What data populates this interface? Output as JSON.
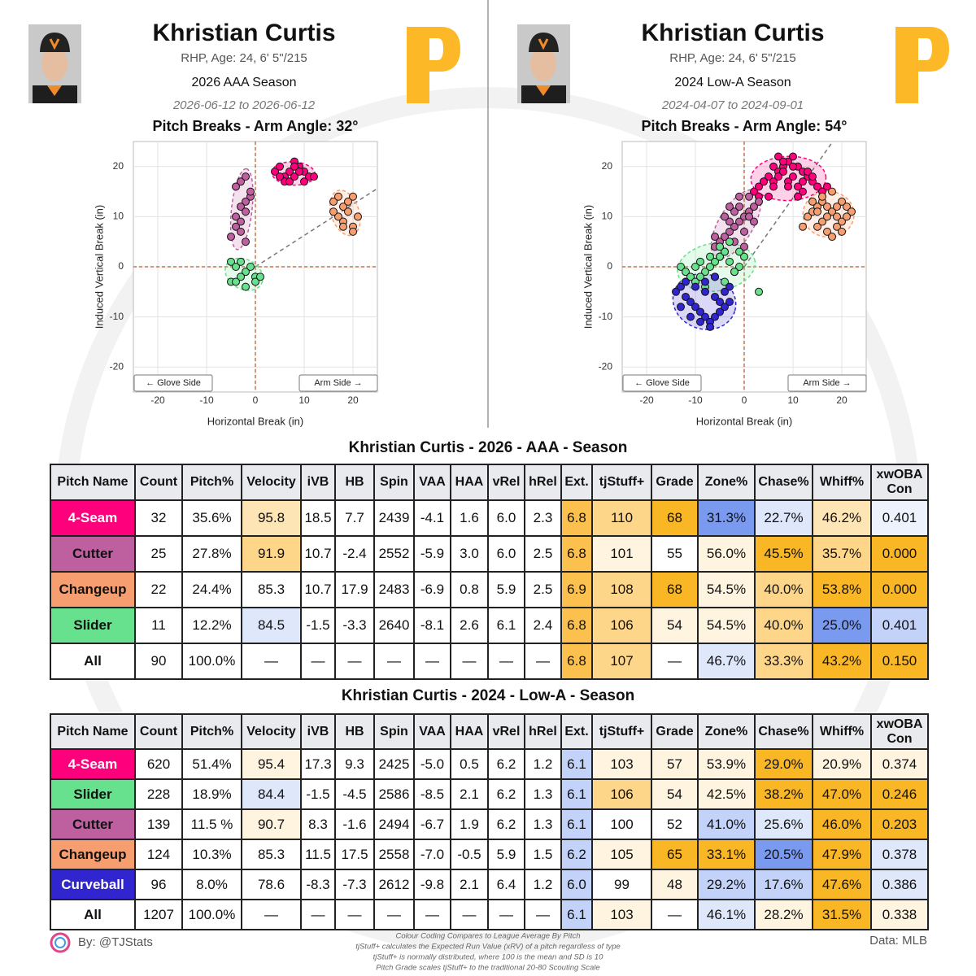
{
  "panels": [
    {
      "name": "Khristian Curtis",
      "bio": "RHP, Age: 24, 6' 5\"/215",
      "season": "2026 AAA Season",
      "dates": "2026-06-12 to 2026-06-12"
    },
    {
      "name": "Khristian Curtis",
      "bio": "RHP, Age: 24, 6' 5\"/215",
      "season": "2024 Low-A Season",
      "dates": "2024-04-07 to 2024-09-01"
    }
  ],
  "chart_data": [
    {
      "type": "scatter",
      "title": "Pitch Breaks - Arm Angle: 32°",
      "arm_angle": 32,
      "x_label": "Horizontal Break (in)",
      "y_label": "Induced Vertical Break (in)",
      "annotations": [
        "← Glove Side",
        "Arm Side →"
      ],
      "xlim": [
        -25,
        25
      ],
      "ylim": [
        -25,
        25
      ],
      "xticks": [
        -20,
        -10,
        0,
        10,
        20
      ],
      "yticks": [
        -20,
        -10,
        0,
        10,
        20
      ],
      "grid": true,
      "series": [
        {
          "color": "#ff007d",
          "x": [
            4,
            5,
            6,
            7,
            8,
            9,
            10,
            11,
            6,
            7,
            8,
            9,
            10,
            5,
            8,
            12
          ],
          "y": [
            19,
            20,
            18,
            19,
            21,
            20,
            19,
            18,
            17,
            17,
            18,
            19,
            17,
            18,
            20,
            18
          ]
        },
        {
          "color": "#be5fa0",
          "x": [
            -3,
            -2,
            -1,
            -2,
            -3,
            -4,
            -3,
            -2,
            -4,
            -5,
            -3,
            -1,
            -2,
            -4
          ],
          "y": [
            17,
            18,
            14,
            13,
            12,
            10,
            9,
            11,
            8,
            6,
            7,
            15,
            5,
            16
          ]
        },
        {
          "color": "#f79e70",
          "x": [
            16,
            17,
            18,
            19,
            20,
            21,
            17,
            18,
            19,
            20,
            16,
            18,
            20
          ],
          "y": [
            13,
            14,
            12,
            13,
            14,
            10,
            10,
            9,
            11,
            8,
            11,
            8,
            7
          ]
        },
        {
          "color": "#67e18d",
          "x": [
            -5,
            -4,
            -3,
            -2,
            -1,
            0,
            -5,
            -3,
            -2,
            -4,
            0,
            1
          ],
          "y": [
            1,
            0,
            1,
            -1,
            0,
            -2,
            -3,
            -2,
            -4,
            -3,
            -3,
            -2
          ]
        }
      ]
    },
    {
      "type": "scatter",
      "title": "Pitch Breaks - Arm Angle: 54°",
      "arm_angle": 54,
      "x_label": "Horizontal Break (in)",
      "y_label": "Induced Vertical Break (in)",
      "annotations": [
        "← Glove Side",
        "Arm Side →"
      ],
      "xlim": [
        -25,
        25
      ],
      "ylim": [
        -25,
        25
      ],
      "xticks": [
        -20,
        -10,
        0,
        10,
        20
      ],
      "yticks": [
        -20,
        -10,
        0,
        10,
        20
      ],
      "grid": true,
      "series": [
        {
          "color": "#ff007d",
          "x": [
            2,
            3,
            4,
            5,
            6,
            7,
            8,
            9,
            10,
            11,
            12,
            13,
            14,
            15,
            16,
            5,
            6,
            7,
            8,
            9,
            10,
            11,
            12,
            13,
            3,
            4,
            8,
            9,
            10,
            12,
            14,
            7,
            6,
            11,
            17
          ],
          "y": [
            15,
            16,
            17,
            18,
            17,
            19,
            20,
            21,
            22,
            20,
            19,
            18,
            17,
            16,
            15,
            14,
            16,
            18,
            19,
            17,
            18,
            16,
            17,
            19,
            14,
            17,
            21,
            16,
            20,
            15,
            18,
            22,
            20,
            14,
            16
          ]
        },
        {
          "color": "#f79e70",
          "x": [
            13,
            14,
            15,
            16,
            17,
            18,
            19,
            20,
            21,
            22,
            15,
            16,
            17,
            18,
            19,
            20,
            14,
            16,
            18,
            20,
            17,
            19,
            21,
            15,
            12
          ],
          "y": [
            10,
            11,
            12,
            13,
            12,
            11,
            10,
            9,
            12,
            11,
            8,
            9,
            7,
            6,
            8,
            7,
            13,
            14,
            15,
            13,
            10,
            12,
            10,
            11,
            8
          ]
        },
        {
          "color": "#be5fa0",
          "x": [
            -6,
            -5,
            -4,
            -3,
            -2,
            -1,
            0,
            1,
            2,
            3,
            -5,
            -4,
            -3,
            -2,
            -1,
            0,
            1,
            -6,
            -4,
            -2,
            0,
            2,
            -3,
            -1,
            1
          ],
          "y": [
            4,
            5,
            6,
            7,
            8,
            9,
            10,
            11,
            12,
            13,
            2,
            3,
            9,
            11,
            12,
            7,
            14,
            6,
            10,
            5,
            4,
            9,
            12,
            14,
            10
          ]
        },
        {
          "color": "#67e18d",
          "x": [
            -13,
            -12,
            -11,
            -10,
            -9,
            -8,
            -7,
            -6,
            -5,
            -4,
            -3,
            -2,
            -1,
            0,
            -10,
            -8,
            -6,
            -4,
            -2,
            -7,
            -5,
            -3,
            -1,
            3,
            -9
          ],
          "y": [
            0,
            -1,
            -2,
            0,
            1,
            -1,
            0,
            1,
            2,
            3,
            1,
            -1,
            0,
            2,
            -3,
            -4,
            -2,
            -3,
            -1,
            2,
            4,
            5,
            3,
            -5,
            -2
          ]
        },
        {
          "color": "#3025ce",
          "x": [
            -14,
            -13,
            -12,
            -11,
            -10,
            -9,
            -8,
            -7,
            -6,
            -5,
            -4,
            -3,
            -12,
            -10,
            -8,
            -6,
            -4,
            -11,
            -9,
            -7,
            -5,
            -13,
            -8,
            -6,
            -3
          ],
          "y": [
            -5,
            -4,
            -6,
            -7,
            -8,
            -9,
            -10,
            -11,
            -10,
            -9,
            -8,
            -7,
            -3,
            -4,
            -5,
            -6,
            -5,
            -10,
            -11,
            -12,
            -7,
            -8,
            -3,
            -2,
            -4
          ]
        }
      ]
    }
  ],
  "tables": [
    {
      "title": "Khristian Curtis - 2026 - AAA - Season",
      "columns": [
        "Pitch Name",
        "Count",
        "Pitch%",
        "Velocity",
        "iVB",
        "HB",
        "Spin",
        "VAA",
        "HAA",
        "vRel",
        "hRel",
        "Ext.",
        "tjStuff+",
        "Grade",
        "Zone%",
        "Chase%",
        "Whiff%",
        "xwOBA Con"
      ],
      "rows": [
        [
          "4-Seam",
          "32",
          "35.6%",
          "95.8",
          "18.5",
          "7.7",
          "2439",
          "-4.1",
          "1.6",
          "6.0",
          "2.3",
          "6.8",
          "110",
          "68",
          "31.3%",
          "22.7%",
          "46.2%",
          "0.401"
        ],
        [
          "Cutter",
          "25",
          "27.8%",
          "91.9",
          "10.7",
          "-2.4",
          "2552",
          "-5.9",
          "3.0",
          "6.0",
          "2.5",
          "6.8",
          "101",
          "55",
          "56.0%",
          "45.5%",
          "35.7%",
          "0.000"
        ],
        [
          "Changeup",
          "22",
          "24.4%",
          "85.3",
          "10.7",
          "17.9",
          "2483",
          "-6.9",
          "0.8",
          "5.9",
          "2.5",
          "6.9",
          "108",
          "68",
          "54.5%",
          "40.0%",
          "53.8%",
          "0.000"
        ],
        [
          "Slider",
          "11",
          "12.2%",
          "84.5",
          "-1.5",
          "-3.3",
          "2640",
          "-8.1",
          "2.6",
          "6.1",
          "2.4",
          "6.8",
          "106",
          "54",
          "54.5%",
          "40.0%",
          "25.0%",
          "0.401"
        ],
        [
          "All",
          "90",
          "100.0%",
          "—",
          "—",
          "—",
          "—",
          "—",
          "—",
          "—",
          "—",
          "6.8",
          "107",
          "—",
          "46.7%",
          "33.3%",
          "43.2%",
          "0.150"
        ]
      ],
      "colors": [
        [
          "#ff007d",
          "white",
          "white",
          "#fde5b5",
          "white",
          "white",
          "white",
          "white",
          "white",
          "white",
          "white",
          "#fcc04e",
          "#fdd68a",
          "#f9b625",
          "#7a9af0",
          "#dfe7fb",
          "#fde5b5",
          "#eef2fd"
        ],
        [
          "#be5fa0",
          "white",
          "white",
          "#fdd68a",
          "white",
          "white",
          "white",
          "white",
          "white",
          "white",
          "white",
          "#fcc04e",
          "#fff4df",
          "white",
          "#fff4df",
          "#f9b625",
          "#fdd68a",
          "#f9b625"
        ],
        [
          "#f79e70",
          "white",
          "white",
          "white",
          "white",
          "white",
          "white",
          "white",
          "white",
          "white",
          "white",
          "#fcc04e",
          "#fdd68a",
          "#f9b625",
          "#fff4df",
          "#fdd68a",
          "#f9b625",
          "#f9b625"
        ],
        [
          "#67e18d",
          "white",
          "white",
          "#dfe7fb",
          "white",
          "white",
          "white",
          "white",
          "white",
          "white",
          "white",
          "#fcc04e",
          "#fdd68a",
          "#fff4df",
          "#fff4df",
          "#fdd68a",
          "#7a9af0",
          "#c2d2f8"
        ],
        [
          "white",
          "white",
          "white",
          "white",
          "white",
          "white",
          "white",
          "white",
          "white",
          "white",
          "white",
          "#fcc04e",
          "#fdd68a",
          "white",
          "#dfe7fb",
          "#fdd68a",
          "#f9b625",
          "#f9b625"
        ]
      ]
    },
    {
      "title": "Khristian Curtis - 2024 - Low-A - Season",
      "columns": [
        "Pitch Name",
        "Count",
        "Pitch%",
        "Velocity",
        "iVB",
        "HB",
        "Spin",
        "VAA",
        "HAA",
        "vRel",
        "hRel",
        "Ext.",
        "tjStuff+",
        "Grade",
        "Zone%",
        "Chase%",
        "Whiff%",
        "xwOBA Con"
      ],
      "rows": [
        [
          "4-Seam",
          "620",
          "51.4%",
          "95.4",
          "17.3",
          "9.3",
          "2425",
          "-5.0",
          "0.5",
          "6.2",
          "1.2",
          "6.1",
          "103",
          "57",
          "53.9%",
          "29.0%",
          "20.9%",
          "0.374"
        ],
        [
          "Slider",
          "228",
          "18.9%",
          "84.4",
          "-1.5",
          "-4.5",
          "2586",
          "-8.5",
          "2.1",
          "6.2",
          "1.3",
          "6.1",
          "106",
          "54",
          "42.5%",
          "38.2%",
          "47.0%",
          "0.246"
        ],
        [
          "Cutter",
          "139",
          "11.5 %",
          "90.7",
          "8.3",
          "-1.6",
          "2494",
          "-6.7",
          "1.9",
          "6.2",
          "1.3",
          "6.1",
          "100",
          "52",
          "41.0%",
          "25.6%",
          "46.0%",
          "0.203"
        ],
        [
          "Changeup",
          "124",
          "10.3%",
          "85.3",
          "11.5",
          "17.5",
          "2558",
          "-7.0",
          "-0.5",
          "5.9",
          "1.5",
          "6.2",
          "105",
          "65",
          "33.1%",
          "20.5%",
          "47.9%",
          "0.378"
        ],
        [
          "Curveball",
          "96",
          "8.0%",
          "78.6",
          "-8.3",
          "-7.3",
          "2612",
          "-9.8",
          "2.1",
          "6.4",
          "1.2",
          "6.0",
          "99",
          "48",
          "29.2%",
          "17.6%",
          "47.6%",
          "0.386"
        ],
        [
          "All",
          "1207",
          "100.0%",
          "—",
          "—",
          "—",
          "—",
          "—",
          "—",
          "—",
          "—",
          "6.1",
          "103",
          "—",
          "46.1%",
          "28.2%",
          "31.5%",
          "0.338"
        ]
      ],
      "colors": [
        [
          "#ff007d",
          "white",
          "white",
          "#fff4df",
          "white",
          "white",
          "white",
          "white",
          "white",
          "white",
          "white",
          "#c2d2f8",
          "#fff4df",
          "#fff4df",
          "#fff4df",
          "#f9b625",
          "#fff4df",
          "#fff4df"
        ],
        [
          "#67e18d",
          "white",
          "white",
          "#dfe7fb",
          "white",
          "white",
          "white",
          "white",
          "white",
          "white",
          "white",
          "#c2d2f8",
          "#fdd68a",
          "#fff4df",
          "#fff4df",
          "#f9b625",
          "#f9b625",
          "#f9b625"
        ],
        [
          "#be5fa0",
          "white",
          "white",
          "#fff4df",
          "white",
          "white",
          "white",
          "white",
          "white",
          "white",
          "white",
          "#c2d2f8",
          "white",
          "white",
          "#c2d2f8",
          "#dfe7fb",
          "#f9b625",
          "#f9b625"
        ],
        [
          "#f79e70",
          "white",
          "white",
          "white",
          "white",
          "white",
          "white",
          "white",
          "white",
          "white",
          "white",
          "#c2d2f8",
          "#fff4df",
          "#f9b625",
          "#f9b625",
          "#7a9af0",
          "#f9b625",
          "#dfe7fb"
        ],
        [
          "#3025ce",
          "white",
          "white",
          "white",
          "white",
          "white",
          "white",
          "white",
          "white",
          "white",
          "white",
          "#c2d2f8",
          "white",
          "#fff4df",
          "#c2d2f8",
          "#c2d2f8",
          "#f9b625",
          "#dfe7fb"
        ],
        [
          "white",
          "white",
          "white",
          "white",
          "white",
          "white",
          "white",
          "white",
          "white",
          "white",
          "white",
          "#c2d2f8",
          "#fff4df",
          "white",
          "#dfe7fb",
          "#fff4df",
          "#f9b625",
          "#fff4df"
        ]
      ]
    }
  ],
  "footer": {
    "credit": "By: @TJStats",
    "notes": [
      "Colour Coding Compares to League Average By Pitch",
      "tjStuff+ calculates the Expected Run Value (xRV) of a pitch regardless of type",
      "tjStuff+ is normally distributed, where 100 is the mean and SD is 10",
      "Pitch Grade scales tjStuff+ to the traditional 20-80 Scouting Scale"
    ],
    "source": "Data: MLB"
  }
}
